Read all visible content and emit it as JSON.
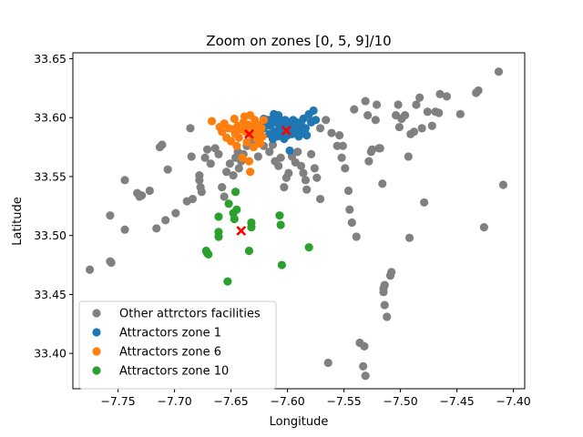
{
  "chart_data": {
    "type": "scatter",
    "title": "Zoom on zones [0, 5, 9]/10",
    "xlabel": "Longitude",
    "ylabel": "Latitude",
    "xlim": [
      -7.79,
      -7.39
    ],
    "ylim": [
      33.37,
      33.655
    ],
    "xticks": [
      -7.75,
      -7.7,
      -7.65,
      -7.6,
      -7.55,
      -7.5,
      -7.45,
      -7.4
    ],
    "xtick_labels": [
      "−7.75",
      "−7.70",
      "−7.65",
      "−7.60",
      "−7.55",
      "−7.50",
      "−7.45",
      "−7.40"
    ],
    "yticks": [
      33.4,
      33.45,
      33.5,
      33.55,
      33.6,
      33.65
    ],
    "ytick_labels": [
      "33.40",
      "33.45",
      "33.50",
      "33.55",
      "33.60",
      "33.65"
    ],
    "grid": false,
    "legend_position": "lower-left",
    "series": [
      {
        "name": "Other attrctors facilities",
        "color": "#808080",
        "marker": "circle",
        "points": [
          [
            -7.775,
            33.471
          ],
          [
            -7.757,
            33.517
          ],
          [
            -7.757,
            33.478
          ],
          [
            -7.756,
            33.477
          ],
          [
            -7.744,
            33.547
          ],
          [
            -7.744,
            33.505
          ],
          [
            -7.733,
            33.536
          ],
          [
            -7.731,
            33.533
          ],
          [
            -7.729,
            33.534
          ],
          [
            -7.722,
            33.538
          ],
          [
            -7.716,
            33.506
          ],
          [
            -7.713,
            33.575
          ],
          [
            -7.711,
            33.577
          ],
          [
            -7.708,
            33.513
          ],
          [
            -7.706,
            33.556
          ],
          [
            -7.699,
            33.519
          ],
          [
            -7.689,
            33.529
          ],
          [
            -7.686,
            33.591
          ],
          [
            -7.685,
            33.567
          ],
          [
            -7.684,
            33.531
          ],
          [
            -7.678,
            33.551
          ],
          [
            -7.678,
            33.547
          ],
          [
            -7.677,
            33.541
          ],
          [
            -7.676,
            33.537
          ],
          [
            -7.673,
            33.566
          ],
          [
            -7.671,
            33.573
          ],
          [
            -7.668,
            33.561
          ],
          [
            -7.664,
            33.574
          ],
          [
            -7.661,
            33.569
          ],
          [
            -7.658,
            33.541
          ],
          [
            -7.656,
            33.533
          ],
          [
            -7.654,
            33.554
          ],
          [
            -7.651,
            33.561
          ],
          [
            -7.648,
            33.551
          ],
          [
            -7.646,
            33.566
          ],
          [
            -7.644,
            33.571
          ],
          [
            -7.643,
            33.557
          ],
          [
            -7.641,
            33.563
          ],
          [
            -7.639,
            33.569
          ],
          [
            -7.636,
            33.576
          ],
          [
            -7.631,
            33.579
          ],
          [
            -7.626,
            33.567
          ],
          [
            -7.621,
            33.576
          ],
          [
            -7.616,
            33.571
          ],
          [
            -7.613,
            33.577
          ],
          [
            -7.611,
            33.563
          ],
          [
            -7.608,
            33.559
          ],
          [
            -7.606,
            33.566
          ],
          [
            -7.603,
            33.541
          ],
          [
            -7.601,
            33.549
          ],
          [
            -7.599,
            33.553
          ],
          [
            -7.596,
            33.567
          ],
          [
            -7.593,
            33.562
          ],
          [
            -7.591,
            33.571
          ],
          [
            -7.588,
            33.559
          ],
          [
            -7.586,
            33.553
          ],
          [
            -7.584,
            33.547
          ],
          [
            -7.583,
            33.539
          ],
          [
            -7.579,
            33.569
          ],
          [
            -7.576,
            33.557
          ],
          [
            -7.574,
            33.549
          ],
          [
            -7.571,
            33.531
          ],
          [
            -7.566,
            33.598
          ],
          [
            -7.564,
            33.392
          ],
          [
            -7.561,
            33.587
          ],
          [
            -7.556,
            33.576
          ],
          [
            -7.554,
            33.585
          ],
          [
            -7.552,
            33.566
          ],
          [
            -7.551,
            33.576
          ],
          [
            -7.549,
            33.557
          ],
          [
            -7.546,
            33.538
          ],
          [
            -7.545,
            33.522
          ],
          [
            -7.543,
            33.511
          ],
          [
            -7.541,
            33.607
          ],
          [
            -7.539,
            33.499
          ],
          [
            -7.536,
            33.409
          ],
          [
            -7.533,
            33.389
          ],
          [
            -7.532,
            33.406
          ],
          [
            -7.531,
            33.381
          ],
          [
            -7.531,
            33.614
          ],
          [
            -7.529,
            33.602
          ],
          [
            -7.528,
            33.563
          ],
          [
            -7.526,
            33.571
          ],
          [
            -7.525,
            33.573
          ],
          [
            -7.522,
            33.598
          ],
          [
            -7.521,
            33.611
          ],
          [
            -7.519,
            33.574
          ],
          [
            -7.518,
            33.574
          ],
          [
            -7.516,
            33.544
          ],
          [
            -7.515,
            33.455
          ],
          [
            -7.515,
            33.452
          ],
          [
            -7.514,
            33.458
          ],
          [
            -7.514,
            33.441
          ],
          [
            -7.512,
            33.431
          ],
          [
            -7.509,
            33.466
          ],
          [
            -7.508,
            33.469
          ],
          [
            -7.504,
            33.602
          ],
          [
            -7.502,
            33.611
          ],
          [
            -7.501,
            33.592
          ],
          [
            -7.499,
            33.599
          ],
          [
            -7.496,
            33.602
          ],
          [
            -7.493,
            33.567
          ],
          [
            -7.492,
            33.498
          ],
          [
            -7.491,
            33.586
          ],
          [
            -7.488,
            33.588
          ],
          [
            -7.486,
            33.611
          ],
          [
            -7.483,
            33.617
          ],
          [
            -7.481,
            33.591
          ],
          [
            -7.479,
            33.528
          ],
          [
            -7.476,
            33.605
          ],
          [
            -7.472,
            33.593
          ],
          [
            -7.469,
            33.605
          ],
          [
            -7.465,
            33.62
          ],
          [
            -7.459,
            33.618
          ],
          [
            -7.447,
            33.603
          ],
          [
            -7.433,
            33.621
          ],
          [
            -7.431,
            33.623
          ],
          [
            -7.426,
            33.507
          ],
          [
            -7.413,
            33.639
          ],
          [
            -7.409,
            33.543
          ],
          [
            -7.466,
            33.604
          ],
          [
            -7.582,
            33.601
          ],
          [
            -7.579,
            33.597
          ],
          [
            -7.571,
            33.591
          ]
        ]
      },
      {
        "name": "Attractors zone 1",
        "color": "#1f77b4",
        "marker": "circle",
        "points": [
          [
            -7.621,
            33.599
          ],
          [
            -7.619,
            33.596
          ],
          [
            -7.617,
            33.598
          ],
          [
            -7.615,
            33.593
          ],
          [
            -7.613,
            33.599
          ],
          [
            -7.611,
            33.588
          ],
          [
            -7.61,
            33.596
          ],
          [
            -7.609,
            33.584
          ],
          [
            -7.607,
            33.592
          ],
          [
            -7.606,
            33.598
          ],
          [
            -7.605,
            33.587
          ],
          [
            -7.604,
            33.594
          ],
          [
            -7.603,
            33.582
          ],
          [
            -7.602,
            33.598
          ],
          [
            -7.601,
            33.59
          ],
          [
            -7.6,
            33.585
          ],
          [
            -7.599,
            33.596
          ],
          [
            -7.598,
            33.572
          ],
          [
            -7.597,
            33.591
          ],
          [
            -7.596,
            33.586
          ],
          [
            -7.595,
            33.598
          ],
          [
            -7.594,
            33.593
          ],
          [
            -7.593,
            33.588
          ],
          [
            -7.592,
            33.596
          ],
          [
            -7.591,
            33.591
          ],
          [
            -7.59,
            33.584
          ],
          [
            -7.588,
            33.594
          ],
          [
            -7.587,
            33.589
          ],
          [
            -7.586,
            33.599
          ],
          [
            -7.584,
            33.591
          ],
          [
            -7.583,
            33.585
          ],
          [
            -7.581,
            33.603
          ],
          [
            -7.579,
            33.596
          ],
          [
            -7.577,
            33.606
          ],
          [
            -7.575,
            33.598
          ],
          [
            -7.612,
            33.603
          ],
          [
            -7.608,
            33.602
          ],
          [
            -7.616,
            33.586
          ],
          [
            -7.613,
            33.582
          ],
          [
            -7.621,
            33.591
          ]
        ]
      },
      {
        "name": "Attractors zone 6",
        "color": "#ff7f0e",
        "marker": "circle",
        "points": [
          [
            -7.667,
            33.597
          ],
          [
            -7.66,
            33.592
          ],
          [
            -7.658,
            33.588
          ],
          [
            -7.656,
            33.595
          ],
          [
            -7.654,
            33.583
          ],
          [
            -7.652,
            33.591
          ],
          [
            -7.65,
            33.58
          ],
          [
            -7.648,
            33.59
          ],
          [
            -7.646,
            33.586
          ],
          [
            -7.645,
            33.576
          ],
          [
            -7.644,
            33.593
          ],
          [
            -7.643,
            33.583
          ],
          [
            -7.641,
            33.59
          ],
          [
            -7.64,
            33.566
          ],
          [
            -7.639,
            33.596
          ],
          [
            -7.638,
            33.601
          ],
          [
            -7.637,
            33.588
          ],
          [
            -7.636,
            33.579
          ],
          [
            -7.635,
            33.594
          ],
          [
            -7.634,
            33.563
          ],
          [
            -7.633,
            33.602
          ],
          [
            -7.632,
            33.585
          ],
          [
            -7.631,
            33.592
          ],
          [
            -7.63,
            33.575
          ],
          [
            -7.629,
            33.598
          ],
          [
            -7.628,
            33.589
          ],
          [
            -7.627,
            33.582
          ],
          [
            -7.626,
            33.594
          ],
          [
            -7.625,
            33.586
          ],
          [
            -7.624,
            33.578
          ],
          [
            -7.623,
            33.591
          ],
          [
            -7.622,
            33.584
          ],
          [
            -7.621,
            33.598
          ],
          [
            -7.633,
            33.554
          ],
          [
            -7.647,
            33.599
          ]
        ]
      },
      {
        "name": "Attractors zone 10",
        "color": "#2ca02c",
        "marker": "circle",
        "points": [
          [
            -7.672,
            33.487
          ],
          [
            -7.671,
            33.485
          ],
          [
            -7.67,
            33.484
          ],
          [
            -7.661,
            33.516
          ],
          [
            -7.661,
            33.503
          ],
          [
            -7.661,
            33.499
          ],
          [
            -7.653,
            33.461
          ],
          [
            -7.652,
            33.527
          ],
          [
            -7.648,
            33.519
          ],
          [
            -7.647,
            33.514
          ],
          [
            -7.646,
            33.537
          ],
          [
            -7.645,
            33.522
          ],
          [
            -7.634,
            33.487
          ],
          [
            -7.632,
            33.511
          ],
          [
            -7.632,
            33.507
          ],
          [
            -7.607,
            33.517
          ],
          [
            -7.606,
            33.509
          ],
          [
            -7.605,
            33.475
          ],
          [
            -7.581,
            33.49
          ]
        ]
      },
      {
        "name": "",
        "color": "#ff0000",
        "marker": "x",
        "points": [
          [
            -7.634,
            33.586
          ],
          [
            -7.601,
            33.589
          ],
          [
            -7.641,
            33.504
          ]
        ]
      }
    ]
  }
}
